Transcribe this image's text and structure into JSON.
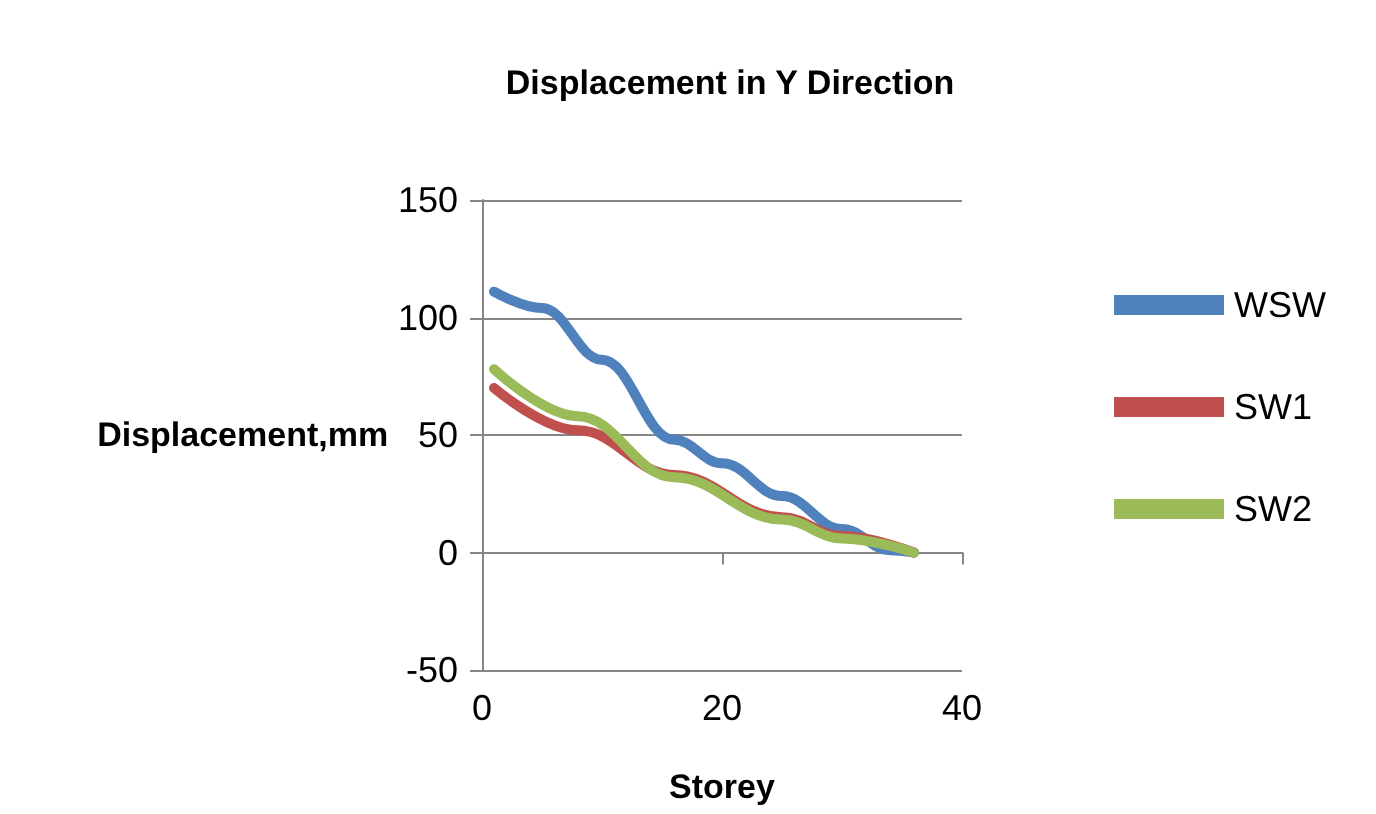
{
  "chart_data": {
    "type": "line",
    "title": "Displacement in Y Direction",
    "xlabel": "Storey",
    "ylabel": "Displacement,mm",
    "xlim": [
      0,
      40
    ],
    "xticks": [
      0,
      20,
      40
    ],
    "ylim": [
      -50,
      150
    ],
    "yticks": [
      -50,
      0,
      50,
      100,
      150
    ],
    "grid": "y",
    "legend": "right",
    "marker": "none",
    "line_style": "solid",
    "series": [
      {
        "name": "WSW",
        "color": "#4f81bd",
        "x": [
          1,
          5,
          10,
          16,
          20,
          25,
          30,
          34,
          36
        ],
        "values": [
          111,
          104,
          82,
          48,
          38,
          24,
          10,
          1,
          0
        ]
      },
      {
        "name": "SW1",
        "color": "#c0504d",
        "x": [
          1,
          8,
          16,
          25,
          30,
          36
        ],
        "values": [
          70,
          52,
          33,
          15,
          7,
          0
        ]
      },
      {
        "name": "SW2",
        "color": "#9bbb59",
        "x": [
          1,
          8,
          16,
          25,
          30,
          36
        ],
        "values": [
          78,
          58,
          32,
          14,
          6,
          0
        ]
      }
    ]
  }
}
